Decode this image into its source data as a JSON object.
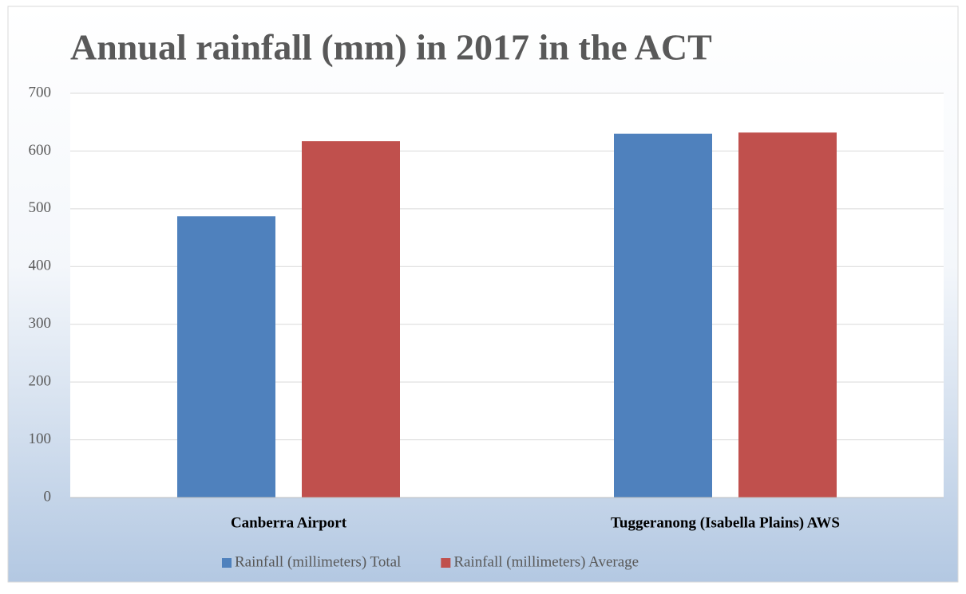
{
  "chart_data": {
    "type": "bar",
    "title": "Annual rainfall (mm) in 2017 in the ACT",
    "categories": [
      "Canberra Airport",
      "Tuggeranong (Isabella Plains) AWS"
    ],
    "series": [
      {
        "name": "Rainfall (millimeters) Total",
        "color": "#4f81bd",
        "values": [
          487,
          630
        ]
      },
      {
        "name": "Rainfall (millimeters) Average",
        "color": "#c0504d",
        "values": [
          617,
          632
        ]
      }
    ],
    "ylim": [
      0,
      700
    ],
    "yticks": [
      0,
      100,
      200,
      300,
      400,
      500,
      600,
      700
    ],
    "grid": true,
    "legend": "bottom"
  }
}
